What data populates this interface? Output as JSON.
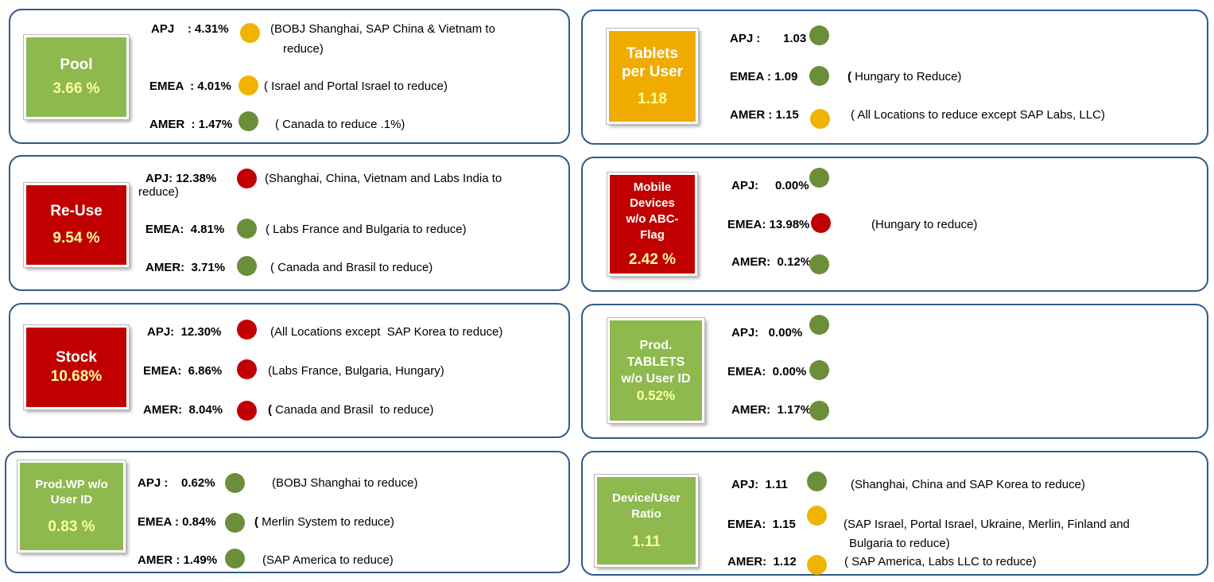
{
  "colors": {
    "panel_border": "#2e5b8a",
    "tile_green": "#8db94e",
    "tile_red": "#c00000",
    "tile_amber": "#f0ab00",
    "dot_green": "#6b8e3a",
    "dot_yellow": "#f0b400",
    "dot_red": "#c00000",
    "tile_value": "#ffff99"
  },
  "pool": {
    "title": "Pool",
    "value": "3.66 %",
    "apj_label": "APJ    : 4.31%",
    "apj_note": "(BOBJ Shanghai, SAP China & Vietnam to",
    "apj_note2": "reduce)",
    "emea_label": "EMEA  : 4.01%",
    "emea_note": "( Israel and Portal Israel to reduce)",
    "amer_label": "AMER  : 1.47%",
    "amer_note": "( Canada to reduce .1%)"
  },
  "tablets": {
    "title1": "Tablets",
    "title2": "per User",
    "value": "1.18",
    "apj_label": "APJ :",
    "apj_value": "1.03",
    "emea_label": "EMEA : 1.09",
    "emea_paren": "(",
    "emea_note": " Hungary to Reduce)",
    "amer_label": "AMER  : 1.15",
    "amer_note": "( All Locations to reduce except SAP Labs, LLC)"
  },
  "reuse": {
    "title": "Re-Use",
    "value": "9.54 %",
    "apj_label": "APJ: 12.38%",
    "apj_note": "(Shanghai, China, Vietnam and Labs India to",
    "apj_note2": "reduce)",
    "emea_label": "EMEA:  4.81%",
    "emea_note": "( Labs France and Bulgaria to reduce)",
    "amer_label": "AMER:  3.71%",
    "amer_note": "( Canada and Brasil to reduce)"
  },
  "mobile": {
    "title1": "Mobile",
    "title2": "Devices",
    "title3": "w/o ABC-",
    "title4": "Flag",
    "value": "2.42 %",
    "apj_label": "APJ:     0.00%",
    "emea_label": "EMEA: 13.98%",
    "emea_note": "(Hungary to reduce)",
    "amer_label": "AMER:  0.12%"
  },
  "stock": {
    "title": "Stock",
    "value": "10.68%",
    "apj_label": "APJ:  12.30%",
    "apj_note": "(All Locations except  SAP Korea to reduce)",
    "emea_label": "EMEA:  6.86%",
    "emea_note": "(Labs France, Bulgaria, Hungary)",
    "amer_label": "AMER:  8.04%",
    "amer_paren": "(",
    "amer_note": " Canada and Brasil  to reduce)"
  },
  "prod_tablets": {
    "title1": "Prod.",
    "title2": "TABLETS",
    "title3": "w/o User ID",
    "value": "0.52%",
    "apj_label": "APJ:   0.00%",
    "emea_label": "EMEA:  0.00%",
    "amer_label": "AMER:  1.17%"
  },
  "prod_wp": {
    "title1": "Prod.WP w/o",
    "title2": "User ID",
    "value": "0.83 %",
    "apj_label": "APJ :    0.62%",
    "apj_note": "(BOBJ Shanghai to reduce)",
    "emea_label": "EMEA : 0.84%",
    "emea_paren": "(",
    "emea_note": " Merlin System to reduce)",
    "amer_label": "AMER : 1.49%",
    "amer_note": "(SAP America to reduce)"
  },
  "device_user": {
    "title1": "Device/User",
    "title2": "Ratio",
    "value": "1.11",
    "apj_label": "APJ:  1.11",
    "apj_note": "(Shanghai, China and SAP Korea to reduce)",
    "emea_label": "EMEA:  1.15",
    "emea_note": "(SAP Israel, Portal Israel, Ukraine, Merlin, Finland and",
    "emea_note2": "Bulgaria to reduce)",
    "amer_label": "AMER:  1.12",
    "amer_note": "( SAP America, Labs LLC to reduce)"
  }
}
